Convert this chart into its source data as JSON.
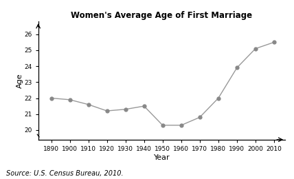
{
  "years": [
    1890,
    1900,
    1910,
    1920,
    1930,
    1940,
    1950,
    1960,
    1970,
    1980,
    1990,
    2000,
    2010
  ],
  "ages": [
    22.0,
    21.9,
    21.6,
    21.2,
    21.3,
    21.5,
    20.3,
    20.3,
    20.8,
    22.0,
    23.9,
    25.1,
    25.5
  ],
  "title": "Women's Average Age of First Marriage",
  "xlabel": "Year",
  "ylabel": "Age",
  "source": "Source: U.S. Census Bureau, 2010.",
  "ylim": [
    19.4,
    26.8
  ],
  "xlim": [
    1883,
    2016
  ],
  "yticks": [
    20,
    21,
    22,
    23,
    24,
    25,
    26
  ],
  "xticks": [
    1890,
    1900,
    1910,
    1920,
    1930,
    1940,
    1950,
    1960,
    1970,
    1980,
    1990,
    2000,
    2010
  ],
  "line_color": "#999999",
  "marker_color": "#888888",
  "bg_color": "#ffffff"
}
